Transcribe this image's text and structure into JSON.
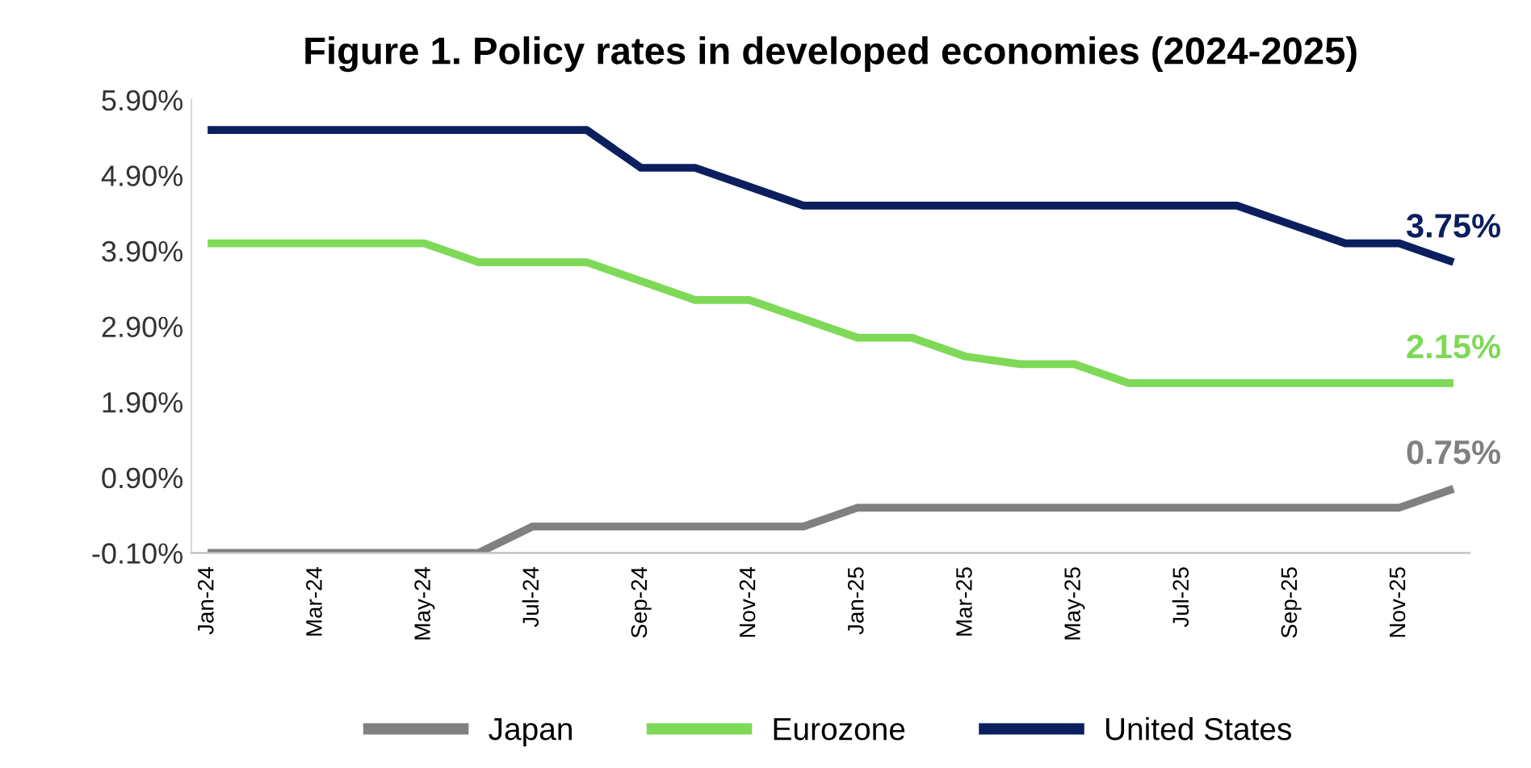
{
  "chart_data": {
    "type": "line",
    "title": "Figure 1. Policy rates in developed economies (2024-2025)",
    "categories": [
      "Jan-24",
      null,
      "Mar-24",
      null,
      "May-24",
      null,
      "Jul-24",
      null,
      "Sep-24",
      null,
      "Nov-24",
      null,
      "Jan-25",
      null,
      "Mar-25",
      null,
      "May-25",
      null,
      "Jul-25",
      null,
      "Sep-25",
      null,
      "Nov-25",
      null
    ],
    "series": [
      {
        "name": "Japan",
        "color": "#808080",
        "values": [
          -0.1,
          -0.1,
          -0.1,
          -0.1,
          -0.1,
          -0.1,
          0.25,
          0.25,
          0.25,
          0.25,
          0.25,
          0.25,
          0.5,
          0.5,
          0.5,
          0.5,
          0.5,
          0.5,
          0.5,
          0.5,
          0.5,
          0.5,
          0.5,
          0.75
        ],
        "value_labels": [
          null,
          null,
          null,
          null,
          null,
          null,
          null,
          null,
          null,
          null,
          null,
          null,
          null,
          null,
          null,
          null,
          null,
          null,
          null,
          null,
          null,
          null,
          null,
          "0.75%"
        ]
      },
      {
        "name": "Eurozone",
        "color": "#7ed957",
        "values": [
          4.0,
          4.0,
          4.0,
          4.0,
          4.0,
          3.75,
          3.75,
          3.75,
          3.5,
          3.25,
          3.25,
          3.0,
          2.75,
          2.75,
          2.5,
          2.4,
          2.4,
          2.15,
          2.15,
          2.15,
          2.15,
          2.15,
          2.15,
          2.15
        ],
        "value_labels": [
          null,
          null,
          null,
          null,
          null,
          null,
          null,
          null,
          null,
          null,
          null,
          null,
          null,
          null,
          null,
          null,
          null,
          null,
          null,
          null,
          null,
          null,
          null,
          "2.15%"
        ]
      },
      {
        "name": "United States",
        "color": "#0b1f5e",
        "values": [
          5.5,
          5.5,
          5.5,
          5.5,
          5.5,
          5.5,
          5.5,
          5.5,
          5.0,
          5.0,
          4.75,
          4.5,
          4.5,
          4.5,
          4.5,
          4.5,
          4.5,
          4.5,
          4.5,
          4.5,
          4.25,
          4.0,
          4.0,
          3.75
        ],
        "value_labels": [
          null,
          null,
          null,
          null,
          null,
          null,
          null,
          null,
          null,
          null,
          null,
          null,
          null,
          null,
          null,
          null,
          null,
          null,
          null,
          null,
          null,
          null,
          null,
          "3.75%"
        ]
      }
    ],
    "ylim": [
      -0.1,
      5.9
    ],
    "yticks": [
      {
        "value": -0.1,
        "label": "-0.10%"
      },
      {
        "value": 0.9,
        "label": "0.90%"
      },
      {
        "value": 1.9,
        "label": "1.90%"
      },
      {
        "value": 2.9,
        "label": "2.90%"
      },
      {
        "value": 3.9,
        "label": "3.90%"
      },
      {
        "value": 4.9,
        "label": "4.90%"
      },
      {
        "value": 5.9,
        "label": "5.90%"
      }
    ],
    "legend": "bottom",
    "grid": false,
    "marker": "none",
    "line_style": "solid"
  }
}
